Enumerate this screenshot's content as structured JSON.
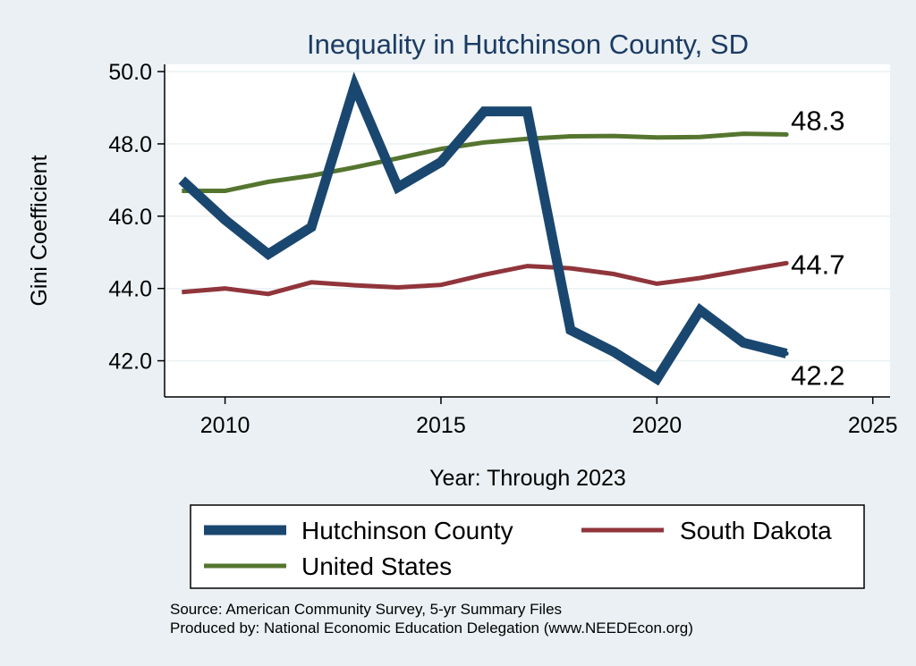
{
  "chart_data": {
    "type": "line",
    "title": "Inequality in Hutchinson County, SD",
    "xlabel": "Year: Through 2023",
    "ylabel": "Gini Coefficient",
    "xlim": [
      2008.6,
      2025.4
    ],
    "ylim": [
      41.0,
      50.2
    ],
    "xticks": [
      2010,
      2015,
      2020,
      2025
    ],
    "yticks": [
      42.0,
      44.0,
      46.0,
      48.0,
      50.0
    ],
    "ytick_labels": [
      "42.0",
      "44.0",
      "46.0",
      "48.0",
      "50.0"
    ],
    "grid": true,
    "x": [
      2009,
      2010,
      2011,
      2012,
      2013,
      2014,
      2015,
      2016,
      2017,
      2018,
      2019,
      2020,
      2021,
      2022,
      2023
    ],
    "series": [
      {
        "name": "Hutchinson County",
        "color": "#1a476f",
        "values": [
          47.0,
          45.9,
          44.95,
          45.7,
          49.6,
          46.8,
          47.5,
          48.9,
          48.9,
          42.85,
          42.25,
          41.5,
          43.4,
          42.5,
          42.2
        ],
        "end_label": "42.2"
      },
      {
        "name": "South Dakota",
        "color": "#90353b",
        "values": [
          43.9,
          44.0,
          43.85,
          44.17,
          44.09,
          44.03,
          44.1,
          44.38,
          44.62,
          44.56,
          44.4,
          44.13,
          44.29,
          44.5,
          44.7
        ],
        "end_label": "44.7"
      },
      {
        "name": "United States",
        "color": "#55752f",
        "values": [
          46.7,
          46.7,
          46.95,
          47.12,
          47.35,
          47.6,
          47.86,
          48.04,
          48.14,
          48.21,
          48.22,
          48.18,
          48.19,
          48.28,
          48.26
        ],
        "end_label": "48.3"
      }
    ],
    "legend": {
      "position": "bottom",
      "entries": [
        "Hutchinson County",
        "South Dakota",
        "United States"
      ]
    }
  },
  "footer": {
    "source": "Source: American Community Survey, 5-yr Summary Files",
    "produced": "Produced by: National Economic Education Delegation (www.NEEDEcon.org)"
  }
}
